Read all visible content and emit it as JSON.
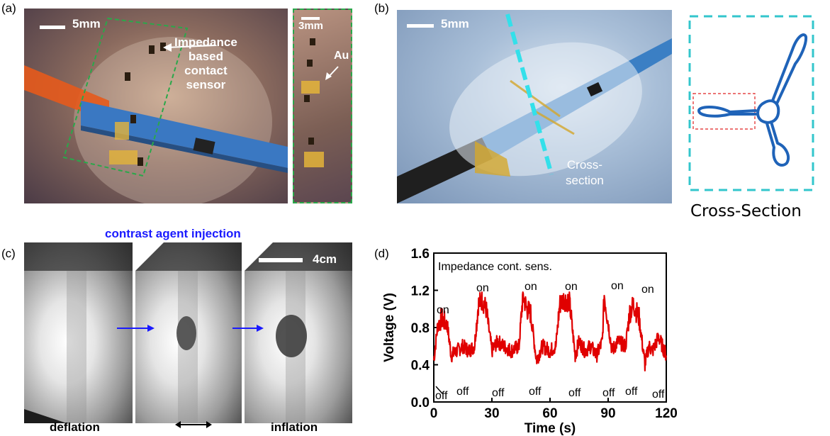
{
  "panel_a": {
    "label": "(a)",
    "scale_main": "5mm",
    "scale_inset": "3mm",
    "annotation": [
      "Impedance",
      "based",
      "contact",
      "sensor"
    ],
    "inset_label": "Au"
  },
  "panel_b": {
    "label": "(b)",
    "scale": "5mm",
    "cross_section_label": [
      "Cross-",
      "section"
    ],
    "schematic_caption": "Cross-Section"
  },
  "panel_c": {
    "label": "(c)",
    "title": "contrast agent injection",
    "scale": "4cm",
    "left_caption": "deflation",
    "right_caption": "inflation"
  },
  "panel_d": {
    "label": "(d)",
    "legend": "Impedance cont. sens.",
    "on_labels": [
      "on",
      "on",
      "on",
      "on",
      "on",
      "on"
    ],
    "off_labels": [
      "off",
      "off",
      "off",
      "off",
      "off",
      "off",
      "off",
      "off"
    ]
  },
  "colors": {
    "signal": "#e00000",
    "crosssection_box": "#33c6cc",
    "schematic": "#1f63b8",
    "arrow_blue": "#1a1aff",
    "dashed_green": "#2aa84a"
  },
  "chart_data": {
    "type": "line",
    "title": "",
    "xlabel": "Time (s)",
    "ylabel": "Voltage (V)",
    "xlim": [
      0,
      120
    ],
    "ylim": [
      0.0,
      1.6
    ],
    "xticks": [
      0,
      30,
      60,
      90,
      120
    ],
    "yticks": [
      "0.0",
      "0.4",
      "0.8",
      "1.2",
      "1.6"
    ],
    "series": [
      {
        "name": "Impedance cont. sens.",
        "x": [
          0,
          2,
          4,
          7,
          9,
          12,
          15,
          18,
          21,
          23,
          25,
          27,
          30,
          33,
          36,
          40,
          44,
          46,
          48,
          50,
          53,
          56,
          60,
          63,
          65,
          67,
          70,
          73,
          75,
          78,
          81,
          84,
          87,
          88,
          90,
          92,
          95,
          99,
          101,
          103,
          106,
          109,
          111,
          113,
          116,
          120
        ],
        "y": [
          0.45,
          0.82,
          0.9,
          0.82,
          0.5,
          0.55,
          0.6,
          0.55,
          0.6,
          1.05,
          1.1,
          1.0,
          0.55,
          0.65,
          0.6,
          0.55,
          0.6,
          1.15,
          1.0,
          0.95,
          0.45,
          0.6,
          0.55,
          0.6,
          1.05,
          1.1,
          1.08,
          0.5,
          0.65,
          0.55,
          0.6,
          0.5,
          0.65,
          1.15,
          0.85,
          0.55,
          0.65,
          0.6,
          0.95,
          1.05,
          0.9,
          0.4,
          0.6,
          0.55,
          0.7,
          0.5
        ]
      }
    ]
  }
}
